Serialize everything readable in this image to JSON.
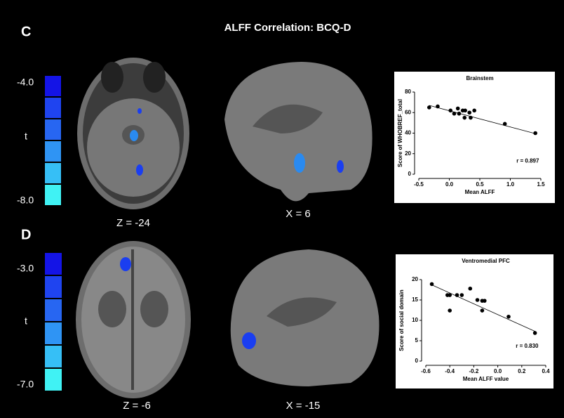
{
  "figure": {
    "title": "ALFF Correlation: BCQ-D",
    "panels": [
      {
        "label": "C",
        "colorbar": {
          "top": "-4.0",
          "middle": "t",
          "bottom": "-8.0",
          "colors": [
            "#1414e6",
            "#1f44f0",
            "#2766f2",
            "#2f94f4",
            "#36bff6",
            "#40f2f4"
          ]
        },
        "slices": [
          "Z = -24",
          "X = 6"
        ]
      },
      {
        "label": "D",
        "colorbar": {
          "top": "-3.0",
          "middle": "t",
          "bottom": "-7.0",
          "colors": [
            "#1414e6",
            "#1f44f0",
            "#2766f2",
            "#2f94f4",
            "#36bff6",
            "#40f2f4"
          ]
        },
        "slices": [
          "Z = -6",
          "X = -15"
        ]
      }
    ]
  },
  "chart_data": [
    {
      "type": "scatter",
      "title": "Brainstem",
      "x_label": "Mean ALFF",
      "y_label": "Score of WHOBREF_total",
      "annotation": "r = 0.897",
      "color": "#000000",
      "x": [
        -0.33,
        -0.19,
        0.02,
        0.08,
        0.14,
        0.16,
        0.22,
        0.26,
        0.25,
        0.33,
        0.35,
        0.41,
        0.91,
        1.41
      ],
      "values": [
        65,
        66,
        62,
        59,
        64,
        59,
        62,
        62,
        55,
        60,
        55,
        62,
        49,
        40
      ],
      "fit_line": {
        "x": [
          -0.33,
          1.38
        ],
        "y": [
          67,
          40
        ]
      },
      "xlim": [
        -0.5,
        1.5
      ],
      "xticks": [
        -0.5,
        {
          "value": 0,
          "label": "0.0"
        },
        0.5,
        {
          "value": 1,
          "label": "1.0"
        },
        1.5
      ],
      "ylim": [
        0,
        80
      ],
      "yticks": [
        0,
        20,
        40,
        60,
        80
      ]
    },
    {
      "type": "scatter",
      "title": "Ventromedial PFC",
      "x_label": "Mean ALFF value",
      "y_label": "Score of social domain",
      "annotation": "r = 0.830",
      "color": "#000000",
      "x": [
        -0.55,
        -0.42,
        -0.4,
        -0.4,
        -0.34,
        -0.3,
        -0.23,
        -0.17,
        -0.13,
        -0.11,
        -0.13,
        0.09,
        0.31
      ],
      "values": [
        18.9,
        16.2,
        16.2,
        12.4,
        16.2,
        16.2,
        17.8,
        15.0,
        14.8,
        14.8,
        12.4,
        10.9,
        6.9
      ],
      "fit_line": {
        "x": [
          -0.55,
          0.31
        ],
        "y": [
          18.7,
          7.3
        ]
      },
      "xlim": [
        -0.6,
        0.4
      ],
      "xticks": [
        -0.6,
        -0.4,
        -0.2,
        {
          "value": 0,
          "label": "0.0"
        },
        0.2,
        0.4
      ],
      "ylim": [
        0,
        20
      ],
      "yticks": [
        0,
        5,
        10,
        15,
        20
      ]
    }
  ]
}
